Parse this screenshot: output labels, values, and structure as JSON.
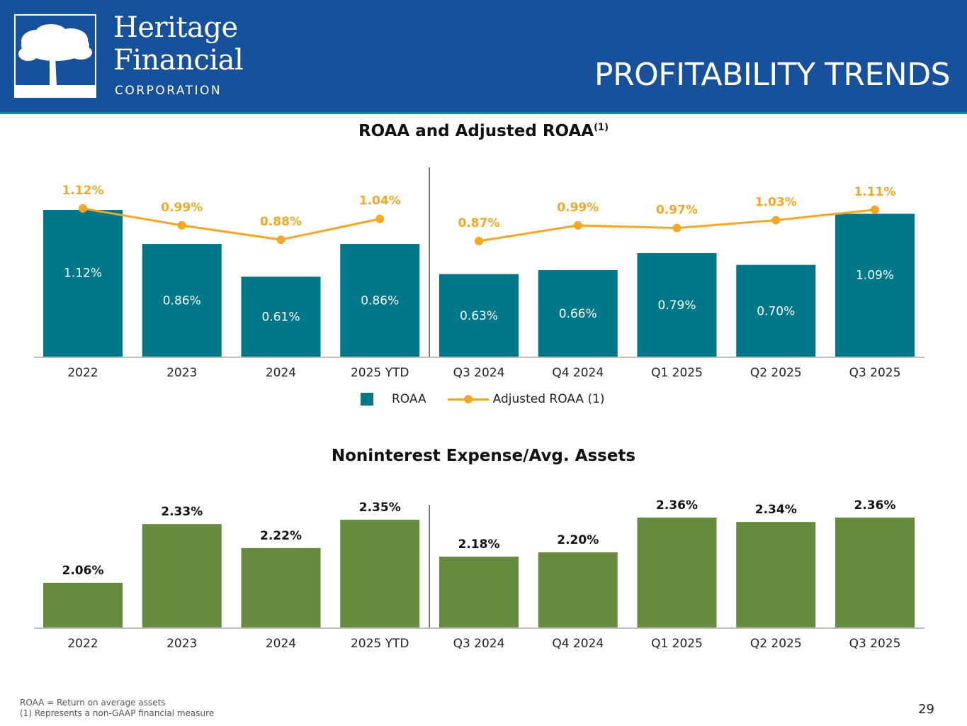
{
  "header": {
    "logo": {
      "icon": "oak-tree-icon",
      "name_line1": "Heritage",
      "name_line2": "Financial",
      "sub": "CORPORATION"
    },
    "page_title": "PROFITABILITY TRENDS"
  },
  "colors": {
    "header_bg": "#17519b",
    "roaa_bar": "#00788a",
    "adjusted_line": "#f5a623",
    "expense_bar": "#668b3e"
  },
  "chart_data": [
    {
      "type": "bar",
      "title": "ROAA and Adjusted ROAA",
      "title_superscript": "(1)",
      "xlabel": "",
      "ylabel": "",
      "categories": [
        "2022",
        "2023",
        "2024",
        "2025 YTD",
        "Q3 2024",
        "Q4 2024",
        "Q1 2025",
        "Q2 2025",
        "Q3 2025"
      ],
      "divider_after_index": 3,
      "grid": false,
      "legend_position": "bottom-center",
      "series": [
        {
          "name": "ROAA",
          "type": "bar",
          "values": [
            1.12,
            0.86,
            0.61,
            0.86,
            0.63,
            0.66,
            0.79,
            0.7,
            1.09
          ],
          "labels": [
            "1.12%",
            "0.86%",
            "0.61%",
            "0.86%",
            "0.63%",
            "0.66%",
            "0.79%",
            "0.70%",
            "1.09%"
          ]
        },
        {
          "name": "Adjusted ROAA (1)",
          "type": "line",
          "values": [
            1.12,
            0.99,
            0.88,
            1.04,
            0.87,
            0.99,
            0.97,
            1.03,
            1.11
          ],
          "labels": [
            "1.12%",
            "0.99%",
            "0.88%",
            "1.04%",
            "0.87%",
            "0.99%",
            "0.97%",
            "1.03%",
            "1.11%"
          ]
        }
      ],
      "legend": [
        "ROAA",
        "Adjusted ROAA (1)"
      ]
    },
    {
      "type": "bar",
      "title": "Noninterest Expense/Avg. Assets",
      "xlabel": "",
      "ylabel": "",
      "categories": [
        "2022",
        "2023",
        "2024",
        "2025 YTD",
        "Q3 2024",
        "Q4 2024",
        "Q1 2025",
        "Q2 2025",
        "Q3 2025"
      ],
      "divider_after_index": 3,
      "grid": false,
      "series": [
        {
          "name": "Noninterest Expense/Avg. Assets",
          "values": [
            2.06,
            2.33,
            2.22,
            2.35,
            2.18,
            2.2,
            2.36,
            2.34,
            2.36
          ],
          "labels": [
            "2.06%",
            "2.33%",
            "2.22%",
            "2.35%",
            "2.18%",
            "2.20%",
            "2.36%",
            "2.34%",
            "2.36%"
          ]
        }
      ]
    }
  ],
  "footnotes": [
    "ROAA = Return on average assets",
    "(1) Represents a non-GAAP financial measure"
  ],
  "page_number": "29"
}
